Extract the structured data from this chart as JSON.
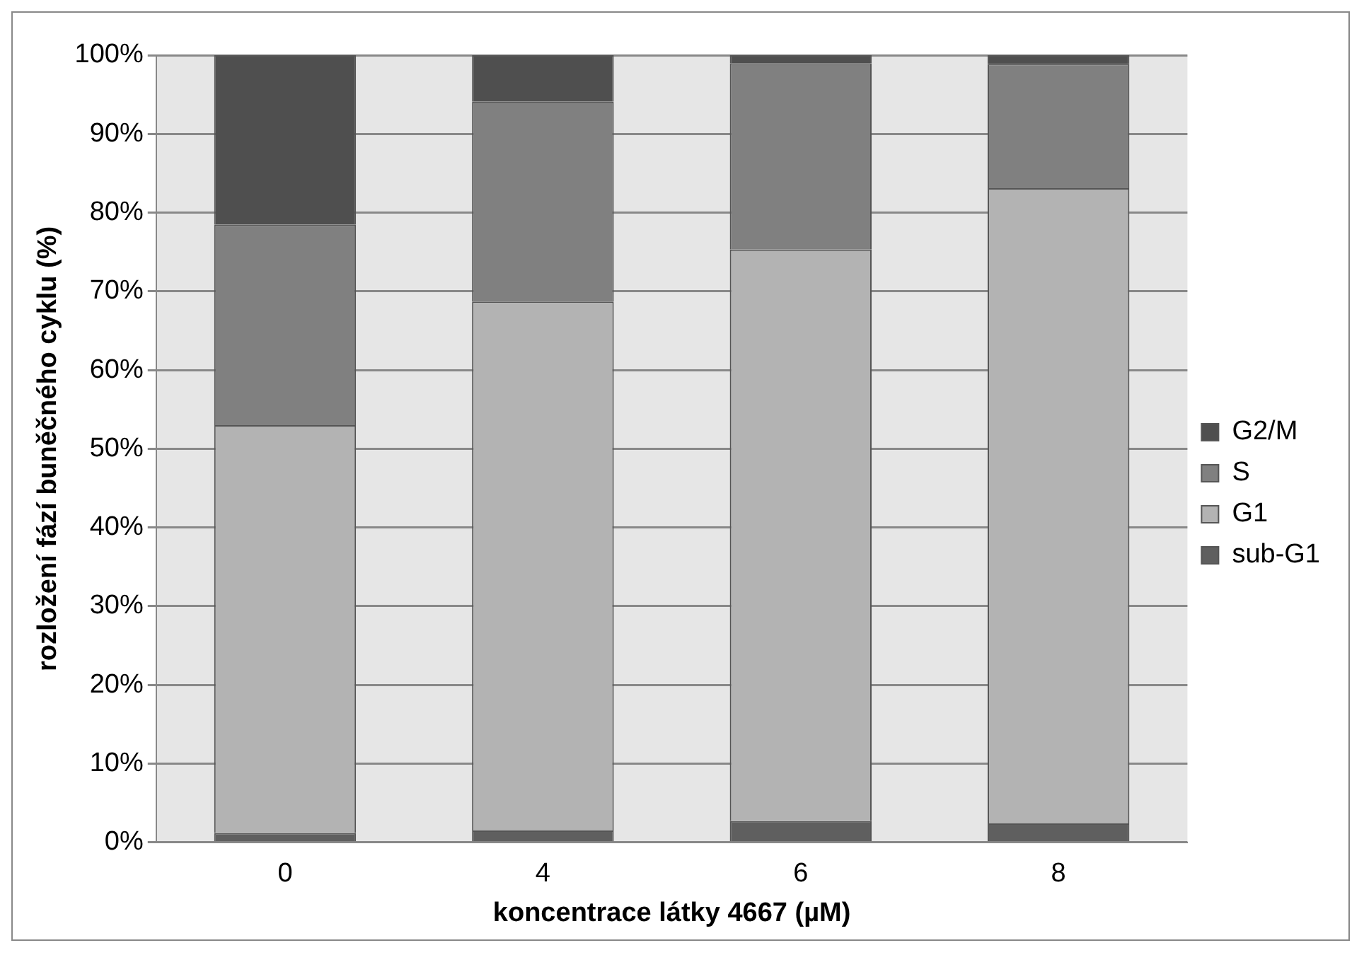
{
  "chart_data": {
    "type": "bar",
    "stacked": true,
    "xlabel": "koncentrace látky 4667 (µM)",
    "ylabel": "rozložení fází buněčného cyklu (%)",
    "categories": [
      "0",
      "4",
      "6",
      "8"
    ],
    "series": [
      {
        "name": "sub-G1",
        "color": "#5f5f5f",
        "values": [
          1.2,
          1.5,
          2.7,
          2.4
        ]
      },
      {
        "name": "G1",
        "color": "#b3b3b3",
        "values": [
          51.8,
          67.2,
          72.6,
          80.7
        ]
      },
      {
        "name": "S",
        "color": "#808080",
        "values": [
          25.5,
          25.4,
          23.7,
          15.8
        ]
      },
      {
        "name": "G2/M",
        "color": "#4f4f4f",
        "values": [
          21.5,
          5.9,
          1.0,
          1.1
        ]
      }
    ],
    "ylim": [
      0,
      100
    ],
    "yticks": [
      {
        "value": 0,
        "label": "0%"
      },
      {
        "value": 10,
        "label": "10%"
      },
      {
        "value": 20,
        "label": "20%"
      },
      {
        "value": 30,
        "label": "30%"
      },
      {
        "value": 40,
        "label": "40%"
      },
      {
        "value": 50,
        "label": "50%"
      },
      {
        "value": 60,
        "label": "60%"
      },
      {
        "value": 70,
        "label": "70%"
      },
      {
        "value": 80,
        "label": "80%"
      },
      {
        "value": 90,
        "label": "90%"
      },
      {
        "value": 100,
        "label": "100%"
      }
    ],
    "grid": "y",
    "legend": "right"
  }
}
